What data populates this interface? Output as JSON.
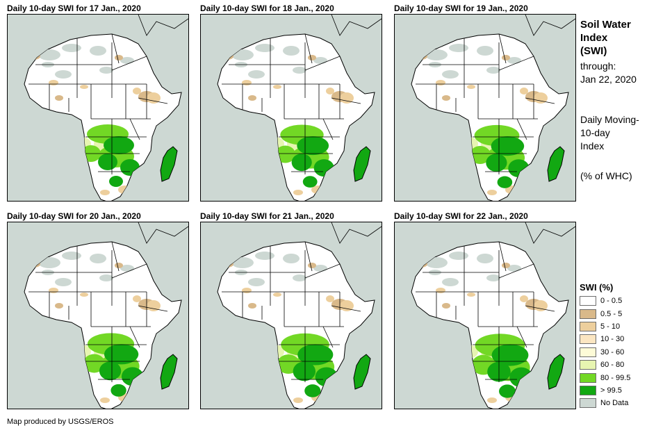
{
  "panels": [
    {
      "title": "Daily 10-day SWI for 17 Jan., 2020",
      "wet_level": 0
    },
    {
      "title": "Daily 10-day SWI for 18 Jan., 2020",
      "wet_level": 1
    },
    {
      "title": "Daily 10-day SWI for 19 Jan., 2020",
      "wet_level": 2
    },
    {
      "title": "Daily 10-day SWI for 20 Jan., 2020",
      "wet_level": 3
    },
    {
      "title": "Daily 10-day SWI for 21 Jan., 2020",
      "wet_level": 4
    },
    {
      "title": "Daily 10-day SWI for 22 Jan., 2020",
      "wet_level": 5
    }
  ],
  "side": {
    "title_line1": "Soil Water",
    "title_line2": "Index",
    "title_line3": "(SWI)",
    "through_label": "through:",
    "through_date": "Jan 22, 2020",
    "moving_line1": "Daily Moving-",
    "moving_line2": "10-day",
    "moving_line3": "Index",
    "unit": "(% of WHC)"
  },
  "legend": {
    "title": "SWI (%)",
    "items": [
      {
        "label": "0 - 0.5",
        "color": "#ffffff"
      },
      {
        "label": "0.5 - 5",
        "color": "#d9b98a"
      },
      {
        "label": "5 - 10",
        "color": "#edcf9d"
      },
      {
        "label": "10 - 30",
        "color": "#fbe6c2"
      },
      {
        "label": "30 - 60",
        "color": "#fdfbd7"
      },
      {
        "label": "60 - 80",
        "color": "#e7f5b1"
      },
      {
        "label": "80 - 99.5",
        "color": "#72d825"
      },
      {
        "label": "> 99.5",
        "color": "#12a812"
      },
      {
        "label": "No Data",
        "color": "#cdd8d3"
      }
    ]
  },
  "credit": "Map produced by USGS/EROS",
  "colors": {
    "sea": "#cdd8d3",
    "land": "#ffffff",
    "border": "#000000",
    "desert_nodata": "#cdd8d3",
    "dry_low": "#d9b98a",
    "dry_mid": "#edcf9d",
    "moist": "#e7f5b1",
    "wet": "#72d825",
    "saturated": "#12a812"
  }
}
